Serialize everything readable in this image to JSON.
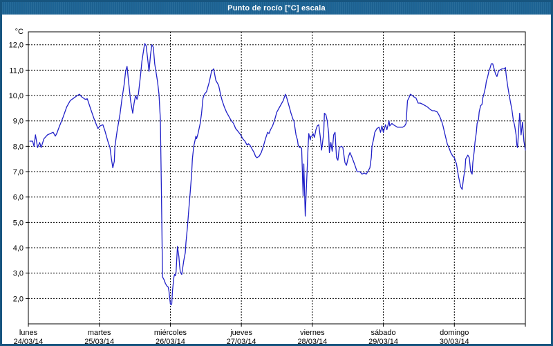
{
  "window": {
    "title": "Punto de rocío [°C] escala"
  },
  "colors": {
    "frame_border": "#17557f",
    "titlebar_bg": "#1d6495",
    "titlebar_text": "#ffffff",
    "plot_frame": "#000000",
    "gridline": "#000000",
    "line_series": "#2121c8",
    "label_text": "#000000",
    "background": "#ffffff"
  },
  "chart_data": {
    "type": "line",
    "title": "Punto de rocío [°C] escala",
    "ylabel_unit": "°C",
    "grid": "dashed",
    "legend_position": "none",
    "y_axis": {
      "tick_labels": [
        "12,0",
        "11,0",
        "10,0",
        "9,0",
        "8,0",
        "7,0",
        "6,0",
        "5,0",
        "4,0",
        "3,0",
        "2,0"
      ],
      "tick_values": [
        12,
        11,
        10,
        9,
        8,
        7,
        6,
        5,
        4,
        3,
        2
      ],
      "display_min": 1.0,
      "display_max": 12.5
    },
    "x_axis": {
      "unit": "days_from_monday",
      "range": [
        0,
        7
      ],
      "days": [
        {
          "name": "lunes",
          "date": "24/03/14",
          "day_index": 0
        },
        {
          "name": "martes",
          "date": "25/03/14",
          "day_index": 1
        },
        {
          "name": "miércoles",
          "date": "26/03/14",
          "day_index": 2
        },
        {
          "name": "jueves",
          "date": "27/03/14",
          "day_index": 3
        },
        {
          "name": "viernes",
          "date": "28/03/14",
          "day_index": 4
        },
        {
          "name": "sábado",
          "date": "29/03/14",
          "day_index": 5
        },
        {
          "name": "domingo",
          "date": "30/03/14",
          "day_index": 6
        }
      ]
    },
    "series": [
      {
        "name": "Punto de rocío",
        "color": "#2121c8",
        "points": [
          [
            0.02,
            8.2
          ],
          [
            0.06,
            8.2
          ],
          [
            0.08,
            8.0
          ],
          [
            0.1,
            8.45
          ],
          [
            0.13,
            7.95
          ],
          [
            0.16,
            8.15
          ],
          [
            0.18,
            7.95
          ],
          [
            0.22,
            8.3
          ],
          [
            0.27,
            8.45
          ],
          [
            0.31,
            8.5
          ],
          [
            0.35,
            8.55
          ],
          [
            0.38,
            8.4
          ],
          [
            0.4,
            8.5
          ],
          [
            0.42,
            8.65
          ],
          [
            0.44,
            8.8
          ],
          [
            0.49,
            9.15
          ],
          [
            0.54,
            9.55
          ],
          [
            0.59,
            9.8
          ],
          [
            0.64,
            9.9
          ],
          [
            0.69,
            10.0
          ],
          [
            0.72,
            10.05
          ],
          [
            0.75,
            9.95
          ],
          [
            0.8,
            9.85
          ],
          [
            0.83,
            9.87
          ],
          [
            0.88,
            9.45
          ],
          [
            0.93,
            9.05
          ],
          [
            0.98,
            8.7
          ],
          [
            1.01,
            8.8
          ],
          [
            1.05,
            8.85
          ],
          [
            1.08,
            8.6
          ],
          [
            1.12,
            8.2
          ],
          [
            1.15,
            7.95
          ],
          [
            1.17,
            7.5
          ],
          [
            1.19,
            7.15
          ],
          [
            1.21,
            7.4
          ],
          [
            1.22,
            8.0
          ],
          [
            1.25,
            8.6
          ],
          [
            1.29,
            9.25
          ],
          [
            1.32,
            9.9
          ],
          [
            1.35,
            10.45
          ],
          [
            1.37,
            10.95
          ],
          [
            1.39,
            11.15
          ],
          [
            1.41,
            10.6
          ],
          [
            1.44,
            9.8
          ],
          [
            1.47,
            9.3
          ],
          [
            1.49,
            9.7
          ],
          [
            1.51,
            10.0
          ],
          [
            1.53,
            9.85
          ],
          [
            1.55,
            10.05
          ],
          [
            1.58,
            10.8
          ],
          [
            1.6,
            11.35
          ],
          [
            1.63,
            11.9
          ],
          [
            1.64,
            12.05
          ],
          [
            1.66,
            11.95
          ],
          [
            1.68,
            11.45
          ],
          [
            1.7,
            10.95
          ],
          [
            1.72,
            11.6
          ],
          [
            1.74,
            12.0
          ],
          [
            1.76,
            11.9
          ],
          [
            1.78,
            11.25
          ],
          [
            1.82,
            10.55
          ],
          [
            1.84,
            10.05
          ],
          [
            1.86,
            9.05
          ],
          [
            1.87,
            7.0
          ],
          [
            1.88,
            5.0
          ],
          [
            1.89,
            2.85
          ],
          [
            1.91,
            2.75
          ],
          [
            1.93,
            2.6
          ],
          [
            1.95,
            2.5
          ],
          [
            1.97,
            2.45
          ],
          [
            1.98,
            2.3
          ],
          [
            1.99,
            2.05
          ],
          [
            2.0,
            1.8
          ],
          [
            2.01,
            1.75
          ],
          [
            2.02,
            1.8
          ],
          [
            2.03,
            2.3
          ],
          [
            2.05,
            2.85
          ],
          [
            2.06,
            2.95
          ],
          [
            2.07,
            2.9
          ],
          [
            2.08,
            3.0
          ],
          [
            2.1,
            4.05
          ],
          [
            2.12,
            3.65
          ],
          [
            2.13,
            3.3
          ],
          [
            2.14,
            3.05
          ],
          [
            2.16,
            2.95
          ],
          [
            2.19,
            3.5
          ],
          [
            2.21,
            3.8
          ],
          [
            2.22,
            4.2
          ],
          [
            2.24,
            4.8
          ],
          [
            2.26,
            5.5
          ],
          [
            2.28,
            6.2
          ],
          [
            2.3,
            6.9
          ],
          [
            2.31,
            7.5
          ],
          [
            2.33,
            8.0
          ],
          [
            2.36,
            8.4
          ],
          [
            2.37,
            8.3
          ],
          [
            2.39,
            8.5
          ],
          [
            2.42,
            8.9
          ],
          [
            2.44,
            9.3
          ],
          [
            2.46,
            9.9
          ],
          [
            2.48,
            10.05
          ],
          [
            2.51,
            10.15
          ],
          [
            2.55,
            10.55
          ],
          [
            2.58,
            10.95
          ],
          [
            2.61,
            11.05
          ],
          [
            2.64,
            10.6
          ],
          [
            2.68,
            10.4
          ],
          [
            2.71,
            10.0
          ],
          [
            2.73,
            9.8
          ],
          [
            2.76,
            9.55
          ],
          [
            2.79,
            9.35
          ],
          [
            2.82,
            9.2
          ],
          [
            2.85,
            9.05
          ],
          [
            2.89,
            8.9
          ],
          [
            2.92,
            8.7
          ],
          [
            2.95,
            8.6
          ],
          [
            2.99,
            8.45
          ],
          [
            3.02,
            8.3
          ],
          [
            3.05,
            8.2
          ],
          [
            3.08,
            8.05
          ],
          [
            3.1,
            8.1
          ],
          [
            3.12,
            8.05
          ],
          [
            3.15,
            7.9
          ],
          [
            3.18,
            7.75
          ],
          [
            3.2,
            7.6
          ],
          [
            3.22,
            7.55
          ],
          [
            3.25,
            7.6
          ],
          [
            3.28,
            7.75
          ],
          [
            3.31,
            8.0
          ],
          [
            3.34,
            8.3
          ],
          [
            3.37,
            8.55
          ],
          [
            3.39,
            8.5
          ],
          [
            3.41,
            8.65
          ],
          [
            3.44,
            8.8
          ],
          [
            3.47,
            9.05
          ],
          [
            3.5,
            9.35
          ],
          [
            3.54,
            9.55
          ],
          [
            3.57,
            9.7
          ],
          [
            3.59,
            9.8
          ],
          [
            3.62,
            10.05
          ],
          [
            3.64,
            9.9
          ],
          [
            3.67,
            9.6
          ],
          [
            3.7,
            9.3
          ],
          [
            3.73,
            9.05
          ],
          [
            3.74,
            9.0
          ],
          [
            3.77,
            8.45
          ],
          [
            3.79,
            8.25
          ],
          [
            3.8,
            8.05
          ],
          [
            3.82,
            7.95
          ],
          [
            3.84,
            7.95
          ],
          [
            3.85,
            7.9
          ],
          [
            3.87,
            6.05
          ],
          [
            3.88,
            7.3
          ],
          [
            3.9,
            5.25
          ],
          [
            3.92,
            6.6
          ],
          [
            3.93,
            7.3
          ],
          [
            3.94,
            8.0
          ],
          [
            3.95,
            8.5
          ],
          [
            3.97,
            8.25
          ],
          [
            3.98,
            8.4
          ],
          [
            4.0,
            8.4
          ],
          [
            4.01,
            8.5
          ],
          [
            4.03,
            8.35
          ],
          [
            4.05,
            8.65
          ],
          [
            4.07,
            8.8
          ],
          [
            4.09,
            8.85
          ],
          [
            4.11,
            8.4
          ],
          [
            4.13,
            7.85
          ],
          [
            4.15,
            8.3
          ],
          [
            4.16,
            8.5
          ],
          [
            4.17,
            9.3
          ],
          [
            4.19,
            9.25
          ],
          [
            4.21,
            9.0
          ],
          [
            4.23,
            8.5
          ],
          [
            4.24,
            7.75
          ],
          [
            4.26,
            8.15
          ],
          [
            4.28,
            7.8
          ],
          [
            4.3,
            8.45
          ],
          [
            4.32,
            8.55
          ],
          [
            4.34,
            7.55
          ],
          [
            4.36,
            7.45
          ],
          [
            4.38,
            7.95
          ],
          [
            4.41,
            8.0
          ],
          [
            4.43,
            7.95
          ],
          [
            4.46,
            7.35
          ],
          [
            4.48,
            7.25
          ],
          [
            4.51,
            7.6
          ],
          [
            4.53,
            7.75
          ],
          [
            4.56,
            7.55
          ],
          [
            4.6,
            7.25
          ],
          [
            4.63,
            7.0
          ],
          [
            4.67,
            7.0
          ],
          [
            4.7,
            6.9
          ],
          [
            4.73,
            6.95
          ],
          [
            4.76,
            6.9
          ],
          [
            4.79,
            7.05
          ],
          [
            4.81,
            7.15
          ],
          [
            4.83,
            7.55
          ],
          [
            4.84,
            8.0
          ],
          [
            4.86,
            8.25
          ],
          [
            4.88,
            8.55
          ],
          [
            4.91,
            8.7
          ],
          [
            4.94,
            8.75
          ],
          [
            4.96,
            8.55
          ],
          [
            4.98,
            8.8
          ],
          [
            5.0,
            8.55
          ],
          [
            5.03,
            8.85
          ],
          [
            5.05,
            8.65
          ],
          [
            5.08,
            9.0
          ],
          [
            5.09,
            8.8
          ],
          [
            5.12,
            8.9
          ],
          [
            5.14,
            8.85
          ],
          [
            5.17,
            8.8
          ],
          [
            5.2,
            8.75
          ],
          [
            5.23,
            8.75
          ],
          [
            5.27,
            8.75
          ],
          [
            5.3,
            8.8
          ],
          [
            5.32,
            8.9
          ],
          [
            5.34,
            9.8
          ],
          [
            5.36,
            9.9
          ],
          [
            5.38,
            10.05
          ],
          [
            5.41,
            10.0
          ],
          [
            5.43,
            9.95
          ],
          [
            5.46,
            9.9
          ],
          [
            5.49,
            9.7
          ],
          [
            5.52,
            9.7
          ],
          [
            5.56,
            9.65
          ],
          [
            5.59,
            9.6
          ],
          [
            5.62,
            9.55
          ],
          [
            5.66,
            9.45
          ],
          [
            5.69,
            9.4
          ],
          [
            5.72,
            9.4
          ],
          [
            5.76,
            9.35
          ],
          [
            5.79,
            9.2
          ],
          [
            5.82,
            9.0
          ],
          [
            5.84,
            8.8
          ],
          [
            5.87,
            8.45
          ],
          [
            5.9,
            8.1
          ],
          [
            5.93,
            7.9
          ],
          [
            5.95,
            7.75
          ],
          [
            5.98,
            7.6
          ],
          [
            6.0,
            7.55
          ],
          [
            6.03,
            7.3
          ],
          [
            6.06,
            6.8
          ],
          [
            6.09,
            6.4
          ],
          [
            6.11,
            6.3
          ],
          [
            6.13,
            6.75
          ],
          [
            6.15,
            7.1
          ],
          [
            6.16,
            7.5
          ],
          [
            6.19,
            7.65
          ],
          [
            6.21,
            7.55
          ],
          [
            6.23,
            7.0
          ],
          [
            6.25,
            6.9
          ],
          [
            6.26,
            7.35
          ],
          [
            6.28,
            7.8
          ],
          [
            6.29,
            8.15
          ],
          [
            6.31,
            8.55
          ],
          [
            6.32,
            8.9
          ],
          [
            6.34,
            9.05
          ],
          [
            6.35,
            9.35
          ],
          [
            6.37,
            9.6
          ],
          [
            6.39,
            9.65
          ],
          [
            6.4,
            9.9
          ],
          [
            6.42,
            10.1
          ],
          [
            6.44,
            10.35
          ],
          [
            6.45,
            10.55
          ],
          [
            6.47,
            10.75
          ],
          [
            6.49,
            11.0
          ],
          [
            6.5,
            11.05
          ],
          [
            6.52,
            11.25
          ],
          [
            6.54,
            11.25
          ],
          [
            6.56,
            11.05
          ],
          [
            6.58,
            10.85
          ],
          [
            6.6,
            10.75
          ],
          [
            6.62,
            10.95
          ],
          [
            6.64,
            11.0
          ],
          [
            6.67,
            11.05
          ],
          [
            6.7,
            11.05
          ],
          [
            6.72,
            11.1
          ],
          [
            6.73,
            10.8
          ],
          [
            6.75,
            10.4
          ],
          [
            6.77,
            10.05
          ],
          [
            6.79,
            9.75
          ],
          [
            6.81,
            9.45
          ],
          [
            6.83,
            9.05
          ],
          [
            6.85,
            8.8
          ],
          [
            6.87,
            8.45
          ],
          [
            6.88,
            8.05
          ],
          [
            6.89,
            7.95
          ],
          [
            6.92,
            9.3
          ],
          [
            6.94,
            8.45
          ],
          [
            6.96,
            8.95
          ],
          [
            6.98,
            8.2
          ],
          [
            7.0,
            7.85
          ]
        ]
      }
    ]
  }
}
